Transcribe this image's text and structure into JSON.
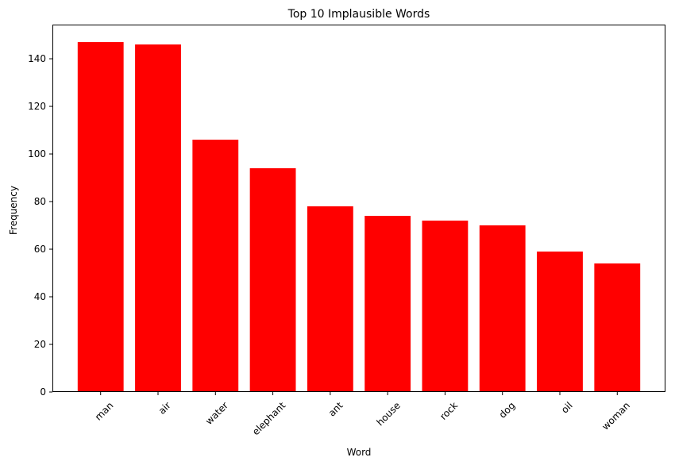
{
  "chart_data": {
    "type": "bar",
    "title": "Top 10 Implausible Words",
    "xlabel": "Word",
    "ylabel": "Frequency",
    "categories": [
      "man",
      "air",
      "water",
      "elephant",
      "ant",
      "house",
      "rock",
      "dog",
      "oil",
      "woman"
    ],
    "values": [
      147,
      146,
      106,
      94,
      78,
      74,
      72,
      70,
      59,
      54
    ],
    "ylim": [
      0,
      154.35
    ],
    "yticks": [
      0,
      20,
      40,
      60,
      80,
      100,
      120,
      140
    ],
    "bar_color": "#ff0000",
    "grid": false,
    "legend": "none"
  }
}
